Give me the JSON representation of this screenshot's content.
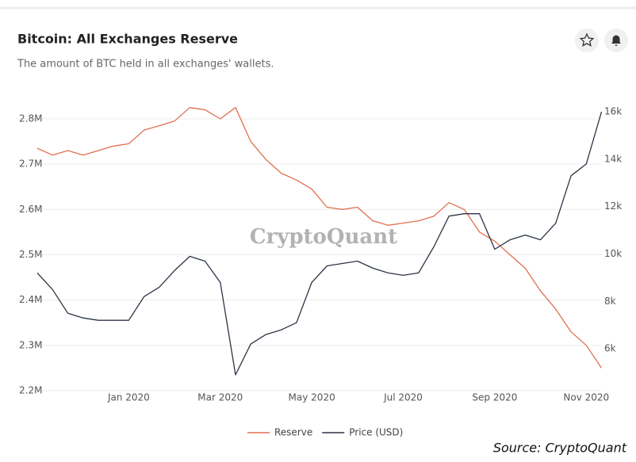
{
  "chart_data": {
    "type": "line",
    "title": "Bitcoin: All Exchanges Reserve",
    "subtitle": "The amount of BTC held in all exchanges' wallets.",
    "watermark": "CryptoQuant",
    "source": "Source: CryptoQuant",
    "categories": [
      null,
      null,
      null,
      null,
      null,
      null,
      "Jan 2020",
      null,
      null,
      null,
      null,
      null,
      "Mar 2020",
      null,
      null,
      null,
      null,
      null,
      "May 2020",
      null,
      null,
      null,
      null,
      null,
      "Jul 2020",
      null,
      null,
      null,
      null,
      null,
      "Sep 2020",
      null,
      null,
      null,
      null,
      null,
      "Nov 2020",
      null
    ],
    "series": [
      {
        "name": "Reserve",
        "color": "#e0704f",
        "axis": "y",
        "values": [
          2735000,
          2720000,
          2730000,
          2720000,
          2730000,
          2740000,
          2745000,
          2775000,
          2785000,
          2795000,
          2825000,
          2820000,
          2800000,
          2825000,
          2750000,
          2710000,
          2680000,
          2665000,
          2645000,
          2605000,
          2600000,
          2605000,
          2575000,
          2565000,
          2570000,
          2575000,
          2585000,
          2615000,
          2600000,
          2550000,
          2530000,
          2500000,
          2470000,
          2420000,
          2380000,
          2330000,
          2300000,
          2250000
        ]
      },
      {
        "name": "Price (USD)",
        "color": "#2b3445",
        "axis": "y2",
        "values": [
          9200,
          8500,
          7500,
          7300,
          7200,
          7200,
          7200,
          8200,
          8600,
          9300,
          9900,
          9700,
          8800,
          4900,
          6200,
          6600,
          6800,
          7100,
          8800,
          9500,
          9600,
          9700,
          9400,
          9200,
          9100,
          9200,
          10300,
          11600,
          11700,
          11700,
          10200,
          10600,
          10800,
          10600,
          11300,
          13300,
          13800,
          16000
        ]
      }
    ],
    "ylim": [
      2200000,
      2850000
    ],
    "yticks": [
      {
        "value": 2200000,
        "label": "2.2M"
      },
      {
        "value": 2300000,
        "label": "2.3M"
      },
      {
        "value": 2400000,
        "label": "2.4M"
      },
      {
        "value": 2500000,
        "label": "2.5M"
      },
      {
        "value": 2600000,
        "label": "2.6M"
      },
      {
        "value": 2700000,
        "label": "2.7M"
      },
      {
        "value": 2800000,
        "label": "2.8M"
      }
    ],
    "y2lim": [
      4230,
      16660
    ],
    "y2ticks": [
      {
        "value": 6000,
        "label": "6k"
      },
      {
        "value": 8000,
        "label": "8k"
      },
      {
        "value": 10000,
        "label": "10k"
      },
      {
        "value": 12000,
        "label": "12k"
      },
      {
        "value": 14000,
        "label": "14k"
      },
      {
        "value": 16000,
        "label": "16k"
      }
    ],
    "grid": true
  }
}
